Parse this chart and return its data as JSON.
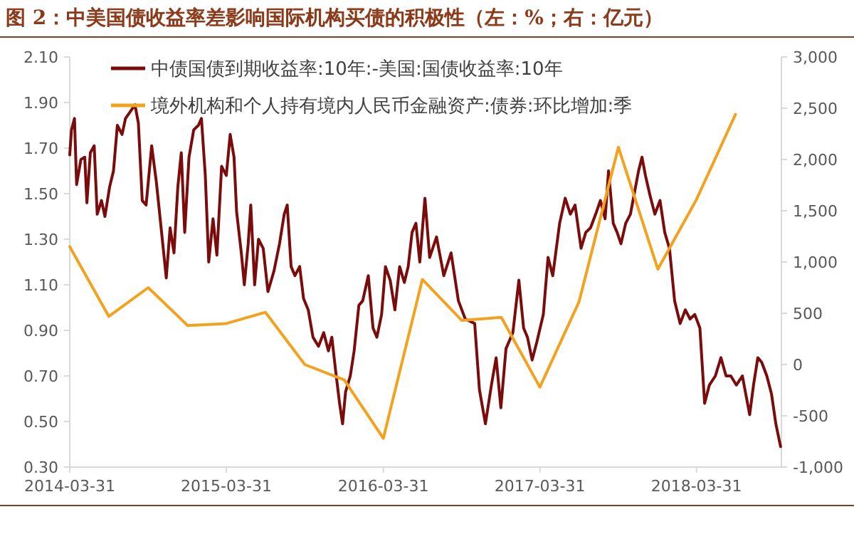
{
  "chart_data": {
    "type": "line",
    "title": "图 2：中美国债收益率差影响国际机构买债的积极性（左：%；右：亿元）",
    "xlim": [
      "2014-03-31",
      "2018-10-15"
    ],
    "xticks": [
      "2014-03-31",
      "2015-03-31",
      "2016-03-31",
      "2017-03-31",
      "2018-03-31"
    ],
    "ylim": [
      0.3,
      2.1
    ],
    "yticks": [
      {
        "value": 0.3,
        "label": "0.30"
      },
      {
        "value": 0.5,
        "label": "0.50"
      },
      {
        "value": 0.7,
        "label": "0.70"
      },
      {
        "value": 0.9,
        "label": "0.90"
      },
      {
        "value": 1.1,
        "label": "1.10"
      },
      {
        "value": 1.3,
        "label": "1.30"
      },
      {
        "value": 1.5,
        "label": "1.50"
      },
      {
        "value": 1.7,
        "label": "1.70"
      },
      {
        "value": 1.9,
        "label": "1.90"
      },
      {
        "value": 2.1,
        "label": "2.10"
      }
    ],
    "y2lim": [
      -1000,
      3000
    ],
    "y2ticks": [
      {
        "value": -1000,
        "label": "-1,000"
      },
      -500,
      0,
      500,
      {
        "value": 1000,
        "label": "1,000"
      },
      {
        "value": 1500,
        "label": "1,500"
      },
      {
        "value": 2000,
        "label": "2,000"
      },
      {
        "value": 2500,
        "label": "2,500"
      },
      {
        "value": 3000,
        "label": "3,000"
      }
    ],
    "grid": false,
    "legend": "top",
    "marker": "none",
    "line_style": "solid",
    "series": [
      {
        "name": "中债国债到期收益率:10年:-美国:国债收益率:10年",
        "color": "#7b0c0c",
        "x": [
          "2014-03-31",
          "2014-04-04",
          "2014-04-11",
          "2014-04-16",
          "2014-04-26",
          "2014-05-05",
          "2014-05-10",
          "2014-05-18",
          "2014-05-27",
          "2014-06-03",
          "2014-06-13",
          "2014-06-21",
          "2014-07-02",
          "2014-07-11",
          "2014-07-20",
          "2014-07-31",
          "2014-08-08",
          "2014-08-19",
          "2014-08-30",
          "2014-09-07",
          "2014-09-16",
          "2014-09-25",
          "2014-10-08",
          "2014-10-19",
          "2014-10-30",
          "2014-11-11",
          "2014-11-20",
          "2014-11-29",
          "2014-12-08",
          "2014-12-16",
          "2014-12-24",
          "2015-01-03",
          "2015-01-14",
          "2015-01-25",
          "2015-02-01",
          "2015-02-10",
          "2015-02-18",
          "2015-02-28",
          "2015-03-09",
          "2015-03-20",
          "2015-03-31",
          "2015-04-09",
          "2015-04-18",
          "2015-04-24",
          "2015-05-05",
          "2015-05-12",
          "2015-05-21",
          "2015-05-27",
          "2015-06-05",
          "2015-06-14",
          "2015-06-25",
          "2015-07-06",
          "2015-07-20",
          "2015-08-02",
          "2015-08-13",
          "2015-08-20",
          "2015-08-29",
          "2015-09-07",
          "2015-09-18",
          "2015-09-27",
          "2015-10-08",
          "2015-10-19",
          "2015-11-01",
          "2015-11-13",
          "2015-11-24",
          "2015-12-02",
          "2015-12-11",
          "2015-12-20",
          "2015-12-27",
          "2016-01-03",
          "2016-01-14",
          "2016-01-23",
          "2016-02-03",
          "2016-02-12",
          "2016-02-25",
          "2016-03-07",
          "2016-03-16",
          "2016-03-27",
          "2016-04-05",
          "2016-04-16",
          "2016-04-27",
          "2016-05-08",
          "2016-05-19",
          "2016-05-28",
          "2016-06-06",
          "2016-06-15",
          "2016-06-24",
          "2016-07-06",
          "2016-07-17",
          "2016-08-02",
          "2016-08-19",
          "2016-09-05",
          "2016-09-22",
          "2016-10-08",
          "2016-10-30",
          "2016-11-10",
          "2016-11-24",
          "2016-12-08",
          "2016-12-19",
          "2016-12-30",
          "2017-01-11",
          "2017-01-27",
          "2017-02-10",
          "2017-02-21",
          "2017-03-02",
          "2017-03-13",
          "2017-03-24",
          "2017-04-08",
          "2017-04-19",
          "2017-04-30",
          "2017-05-16",
          "2017-05-29",
          "2017-06-10",
          "2017-06-21",
          "2017-07-05",
          "2017-07-16",
          "2017-07-27",
          "2017-08-08",
          "2017-08-19",
          "2017-08-30",
          "2017-09-07",
          "2017-09-18",
          "2017-09-27",
          "2017-10-06",
          "2017-10-17",
          "2017-10-28",
          "2017-11-05",
          "2017-11-16",
          "2017-11-24",
          "2017-12-02",
          "2017-12-13",
          "2017-12-24",
          "2018-01-05",
          "2018-01-16",
          "2018-01-27",
          "2018-02-08",
          "2018-02-21",
          "2018-03-05",
          "2018-03-16",
          "2018-03-27",
          "2018-04-08",
          "2018-04-19",
          "2018-04-30",
          "2018-05-14",
          "2018-05-27",
          "2018-06-08",
          "2018-06-19",
          "2018-07-02",
          "2018-07-16",
          "2018-08-02",
          "2018-08-11",
          "2018-08-21",
          "2018-08-30",
          "2018-09-11",
          "2018-09-22",
          "2018-10-02",
          "2018-10-13"
        ],
        "values": [
          1.67,
          1.78,
          1.83,
          1.54,
          1.65,
          1.66,
          1.46,
          1.68,
          1.71,
          1.41,
          1.47,
          1.4,
          1.53,
          1.6,
          1.8,
          1.76,
          1.83,
          1.86,
          1.89,
          1.81,
          1.47,
          1.45,
          1.71,
          1.55,
          1.35,
          1.13,
          1.35,
          1.24,
          1.53,
          1.68,
          1.33,
          1.66,
          1.78,
          1.8,
          1.83,
          1.58,
          1.2,
          1.39,
          1.23,
          1.62,
          1.58,
          1.76,
          1.66,
          1.42,
          1.24,
          1.1,
          1.28,
          1.45,
          1.1,
          1.3,
          1.26,
          1.07,
          1.16,
          1.28,
          1.41,
          1.45,
          1.18,
          1.14,
          1.18,
          1.04,
          0.99,
          0.87,
          0.83,
          0.89,
          0.81,
          0.87,
          0.72,
          0.58,
          0.49,
          0.63,
          0.7,
          0.81,
          1.01,
          1.03,
          1.14,
          0.91,
          0.87,
          0.97,
          1.18,
          1.12,
          0.99,
          1.18,
          1.11,
          1.18,
          1.33,
          1.37,
          1.2,
          1.48,
          1.22,
          1.31,
          1.14,
          1.24,
          1.03,
          0.95,
          0.93,
          0.64,
          0.49,
          0.66,
          0.78,
          0.56,
          0.82,
          0.89,
          1.12,
          0.91,
          0.87,
          0.77,
          0.85,
          0.97,
          1.22,
          1.14,
          1.37,
          1.48,
          1.41,
          1.45,
          1.26,
          1.33,
          1.35,
          1.41,
          1.47,
          1.39,
          1.6,
          1.37,
          1.33,
          1.28,
          1.37,
          1.41,
          1.49,
          1.6,
          1.66,
          1.58,
          1.49,
          1.41,
          1.47,
          1.33,
          1.26,
          1.03,
          0.93,
          0.99,
          0.95,
          0.97,
          0.91,
          0.58,
          0.66,
          0.7,
          0.78,
          0.7,
          0.7,
          0.66,
          0.7,
          0.53,
          0.66,
          0.78,
          0.76,
          0.7,
          0.62,
          0.49,
          0.39
        ]
      },
      {
        "name": "境外机构和个人持有境内人民币金融资产:债券:环比增加:季",
        "color": "#f2a21f",
        "axis": "y2",
        "x": [
          "2014-03-31",
          "2014-06-30",
          "2014-09-30",
          "2014-12-31",
          "2015-03-31",
          "2015-06-30",
          "2015-09-30",
          "2015-12-31",
          "2016-03-31",
          "2016-06-30",
          "2016-09-30",
          "2016-12-31",
          "2017-03-31",
          "2017-06-30",
          "2017-09-30",
          "2017-12-31",
          "2018-03-31",
          "2018-06-30"
        ],
        "values": [
          1150,
          470,
          750,
          380,
          400,
          510,
          0,
          -150,
          -720,
          830,
          430,
          460,
          -220,
          610,
          2120,
          930,
          1610,
          2440
        ]
      }
    ]
  }
}
